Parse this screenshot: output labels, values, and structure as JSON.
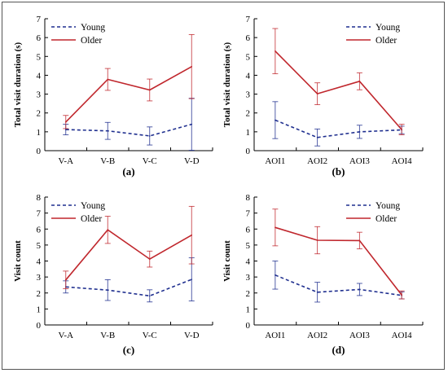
{
  "chart_data": [
    {
      "type": "line",
      "panel_label": "(a)",
      "ylabel": "Total visit duration (s)",
      "categories": [
        "V-A",
        "V-B",
        "V-C",
        "V-D"
      ],
      "ylim": [
        0,
        7
      ],
      "yticks": [
        0,
        1,
        2,
        3,
        4,
        5,
        6,
        7
      ],
      "legend_position": "top-left",
      "series": [
        {
          "name": "Young",
          "values": [
            1.12,
            1.05,
            0.78,
            1.4
          ],
          "err": [
            0.28,
            0.45,
            0.48,
            1.38
          ]
        },
        {
          "name": "Older",
          "values": [
            1.52,
            3.78,
            3.22,
            4.46
          ],
          "err": [
            0.35,
            0.58,
            0.58,
            1.7
          ]
        }
      ]
    },
    {
      "type": "line",
      "panel_label": "(b)",
      "ylabel": "Total visit duration (s)",
      "categories": [
        "AOI1",
        "AOI2",
        "AOI3",
        "AOI4"
      ],
      "ylim": [
        0,
        7
      ],
      "yticks": [
        0,
        1,
        2,
        3,
        4,
        5,
        6,
        7
      ],
      "legend_position": "top-right",
      "series": [
        {
          "name": "Young",
          "values": [
            1.62,
            0.7,
            1.0,
            1.1
          ],
          "err": [
            0.98,
            0.45,
            0.35,
            0.2
          ]
        },
        {
          "name": "Older",
          "values": [
            5.28,
            3.02,
            3.68,
            1.12
          ],
          "err": [
            1.2,
            0.58,
            0.45,
            0.28
          ]
        }
      ]
    },
    {
      "type": "line",
      "panel_label": "(c)",
      "ylabel": "Visit count",
      "categories": [
        "V-A",
        "V-B",
        "V-C",
        "V-D"
      ],
      "ylim": [
        0,
        8
      ],
      "yticks": [
        0,
        1,
        2,
        3,
        4,
        5,
        6,
        7,
        8
      ],
      "legend_position": "top-left",
      "series": [
        {
          "name": "Young",
          "values": [
            2.38,
            2.18,
            1.82,
            2.85
          ],
          "err": [
            0.38,
            0.65,
            0.38,
            1.35
          ]
        },
        {
          "name": "Older",
          "values": [
            2.82,
            5.95,
            4.12,
            5.62
          ],
          "err": [
            0.55,
            0.85,
            0.5,
            1.8
          ]
        }
      ]
    },
    {
      "type": "line",
      "panel_label": "(d)",
      "ylabel": "Visit count",
      "categories": [
        "AOI1",
        "AOI2",
        "AOI3",
        "AOI4"
      ],
      "ylim": [
        0,
        8
      ],
      "yticks": [
        0,
        1,
        2,
        3,
        4,
        5,
        6,
        7,
        8
      ],
      "legend_position": "top-right",
      "series": [
        {
          "name": "Young",
          "values": [
            3.12,
            2.05,
            2.22,
            1.85
          ],
          "err": [
            0.88,
            0.62,
            0.38,
            0.22
          ]
        },
        {
          "name": "Older",
          "values": [
            6.1,
            5.3,
            5.28,
            1.88
          ],
          "err": [
            1.15,
            0.85,
            0.52,
            0.25
          ]
        }
      ]
    }
  ],
  "colors": {
    "young": "#1f2f8f",
    "older": "#c0272d",
    "axis": "#000000"
  }
}
